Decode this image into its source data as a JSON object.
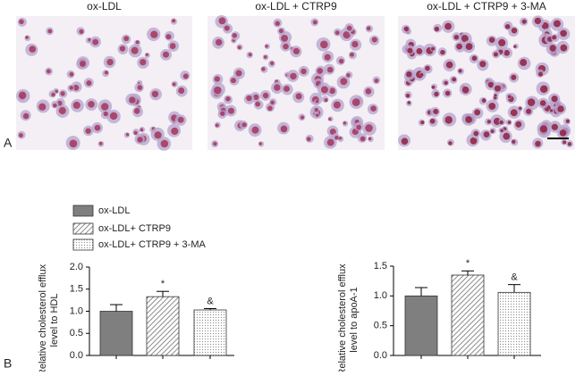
{
  "panel_a": {
    "label": "A",
    "captions": [
      "ox-LDL",
      "ox-LDL + CTRP9",
      "ox-LDL + CTRP9 + 3-MA"
    ]
  },
  "panel_b": {
    "label": "B",
    "legend": [
      {
        "name": "ox-LDL",
        "color": "#7f7f7f",
        "fill": "solid"
      },
      {
        "name": "ox-LDL+ CTRP9",
        "color": "#6f6f6f",
        "fill": "hatch"
      },
      {
        "name": "ox-LDL+ CTRP9 + 3-MA",
        "color": "#8a8a8a",
        "fill": "dots"
      }
    ]
  },
  "chart_data": [
    {
      "type": "bar",
      "ylabel": [
        "Relative cholesterol efflux",
        "level to HDL"
      ],
      "values": [
        1.0,
        1.33,
        1.03
      ],
      "errors": [
        0.15,
        0.12,
        0.03
      ],
      "annotations": [
        null,
        "*",
        "&"
      ],
      "ylim": [
        0,
        2.0
      ],
      "yticks": [
        {
          "value": 0,
          "label": "0.0"
        },
        {
          "value": 0.5,
          "label": "0.5"
        },
        {
          "value": 1,
          "label": "1.0"
        },
        {
          "value": 1.5,
          "label": "1.5"
        },
        {
          "value": 2,
          "label": "2.0"
        }
      ]
    },
    {
      "type": "bar",
      "ylabel": [
        "Relative cholesterol efflux",
        "level to apoA-1"
      ],
      "values": [
        1.0,
        1.35,
        1.06
      ],
      "errors": [
        0.14,
        0.07,
        0.13
      ],
      "annotations": [
        null,
        "*",
        "&"
      ],
      "ylim": [
        0,
        1.5
      ],
      "yticks": [
        {
          "value": 0,
          "label": "0.0"
        },
        {
          "value": 0.5,
          "label": "0.5"
        },
        {
          "value": 1,
          "label": "1.0"
        },
        {
          "value": 1.5,
          "label": "1.5"
        }
      ]
    }
  ]
}
